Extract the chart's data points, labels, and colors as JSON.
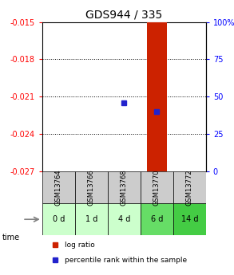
{
  "title": "GDS944 / 335",
  "samples": [
    "GSM13764",
    "GSM13766",
    "GSM13768",
    "GSM13770",
    "GSM13772"
  ],
  "time_labels": [
    "0 d",
    "1 d",
    "4 d",
    "6 d",
    "14 d"
  ],
  "time_colors": [
    "#ccffcc",
    "#ccffcc",
    "#ccffcc",
    "#66dd66",
    "#44cc44"
  ],
  "log_ratio_values": [
    null,
    null,
    -0.027,
    -0.015,
    null
  ],
  "log_ratio_bar_bottom": [
    -0.027,
    -0.027,
    -0.027,
    -0.027,
    -0.027
  ],
  "percentile_rank_values": [
    null,
    null,
    -0.0215,
    -0.0222,
    null
  ],
  "ylim_left": [
    -0.027,
    -0.015
  ],
  "yticks_left": [
    -0.027,
    -0.024,
    -0.021,
    -0.018,
    -0.015
  ],
  "yticks_right": [
    0,
    25,
    50,
    75,
    100
  ],
  "bar_color": "#cc2200",
  "dot_color": "#2222cc",
  "legend_log_ratio": "log ratio",
  "legend_percentile": "percentile rank within the sample",
  "background_color": "#ffffff",
  "sample_header_color": "#cccccc",
  "bar_width": 0.6
}
